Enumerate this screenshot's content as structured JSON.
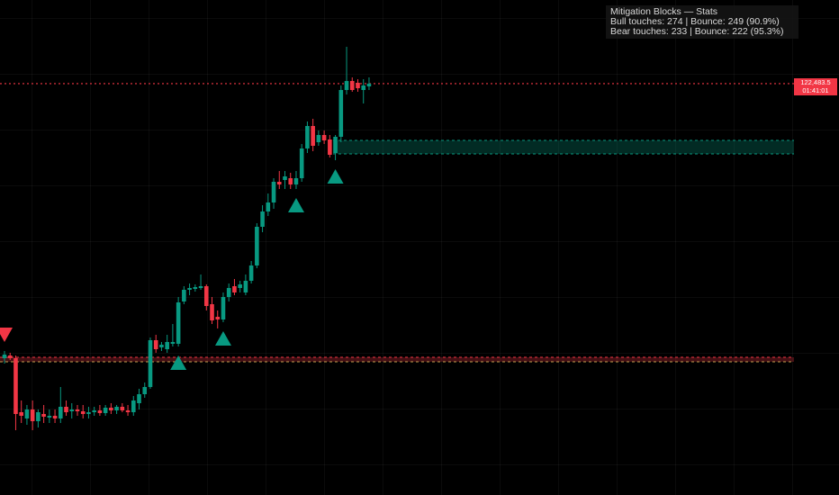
{
  "chart_data": {
    "type": "candlestick",
    "title": "Mitigation Blocks — Stats",
    "stats": [
      "Bull touches: 274 | Bounce: 249 (90.9%)",
      "Bear touches: 233 | Bounce: 222 (95.3%)"
    ],
    "ylim": [
      104200,
      126200
    ],
    "up_color": "#089981",
    "down_color": "#f23645",
    "last_price": {
      "value": 122483.5,
      "label": "122,483.5"
    },
    "countdown": "01:41:01",
    "zones": [
      {
        "top": 119960,
        "bottom": 119360,
        "color": "#089981"
      },
      {
        "top": 110320,
        "bottom": 110120,
        "color": "#f23645"
      }
    ],
    "signals": [
      {
        "candle": 0,
        "direction": "down"
      },
      {
        "candle": 31,
        "direction": "up"
      },
      {
        "candle": 39,
        "direction": "up"
      },
      {
        "candle": 52,
        "direction": "up"
      },
      {
        "candle": 59,
        "direction": "up"
      }
    ],
    "open": [
      110280,
      110400,
      110280,
      107880,
      107600,
      108000,
      107480,
      107800,
      107640,
      107720,
      107600,
      108120,
      107920,
      108000,
      107920,
      107800,
      107880,
      107960,
      107840,
      108080,
      107960,
      108120,
      107960,
      107880,
      108280,
      108680,
      109000,
      111080,
      110760,
      110680,
      110920,
      110920,
      112800,
      113320,
      113360,
      113400,
      113480,
      112680,
      112120,
      112000,
      113000,
      113480,
      113400,
      113200,
      113720,
      114400,
      116120,
      116800,
      117200,
      118120,
      118200,
      118280,
      118000,
      118280,
      119600,
      120600,
      119880,
      120200,
      120000,
      119400,
      120120,
      122200,
      122600,
      122520,
      122200,
      122360
    ],
    "high": [
      110600,
      110520,
      110400,
      108400,
      108200,
      108400,
      108000,
      108200,
      108000,
      108000,
      109000,
      108400,
      108280,
      108200,
      108200,
      108120,
      108120,
      108200,
      108200,
      108280,
      108200,
      108280,
      108200,
      108600,
      108920,
      109200,
      111200,
      111320,
      111000,
      111320,
      111800,
      113000,
      113480,
      113600,
      113560,
      114000,
      113560,
      113000,
      112400,
      113200,
      113600,
      113800,
      113720,
      114000,
      114600,
      116280,
      117080,
      117600,
      118280,
      118600,
      118600,
      118520,
      118600,
      119800,
      120800,
      120920,
      120400,
      120400,
      120200,
      120200,
      122400,
      124120,
      122760,
      122680,
      122680,
      122760
    ],
    "low": [
      110040,
      110200,
      107080,
      107400,
      107320,
      107080,
      107200,
      107400,
      107400,
      107400,
      107400,
      107720,
      107600,
      107720,
      107600,
      107600,
      107720,
      107720,
      107720,
      107800,
      107800,
      107880,
      107720,
      107720,
      108000,
      108520,
      108920,
      110520,
      110600,
      110520,
      110800,
      110800,
      112680,
      113080,
      113240,
      113320,
      112400,
      111800,
      111600,
      111880,
      112800,
      113080,
      113200,
      113080,
      113600,
      114280,
      115880,
      116600,
      116920,
      117800,
      117800,
      117800,
      117800,
      118120,
      119400,
      119480,
      119720,
      119800,
      119200,
      119080,
      119880,
      122000,
      122120,
      122120,
      121600,
      122200
    ],
    "close": [
      110440,
      110280,
      107800,
      107720,
      108000,
      107480,
      107880,
      107680,
      107720,
      107600,
      108120,
      107880,
      108000,
      107920,
      107800,
      107880,
      107960,
      107840,
      108080,
      107960,
      108120,
      107960,
      107880,
      108400,
      108680,
      109000,
      111080,
      110680,
      110880,
      111000,
      111000,
      112760,
      113320,
      113400,
      113440,
      113480,
      112600,
      111960,
      112000,
      113000,
      113400,
      113200,
      113560,
      113720,
      114400,
      116120,
      116800,
      117200,
      118120,
      118000,
      118360,
      118000,
      118280,
      119600,
      120600,
      119720,
      120200,
      119960,
      119320,
      120120,
      122200,
      122600,
      122200,
      122280,
      122400,
      122483.5
    ]
  }
}
